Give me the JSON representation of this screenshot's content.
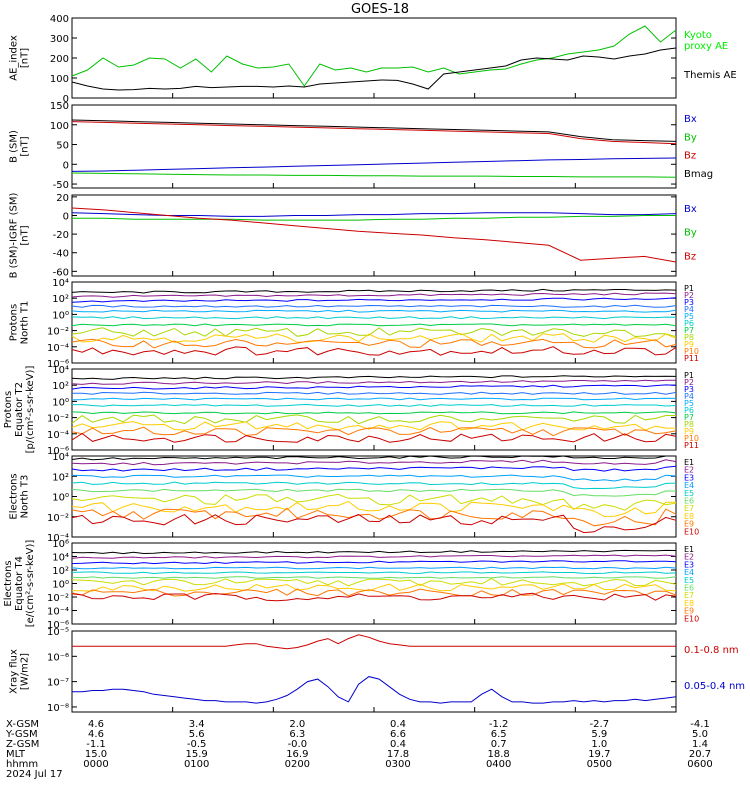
{
  "title": "GOES-18",
  "colors": {
    "axis": "#000000",
    "blue": "#0000cc",
    "green": "#00c000",
    "red": "#cc0000",
    "black": "#000000",
    "bright_green": "#00ee00",
    "proton_palette": [
      "#000000",
      "#8b1a8b",
      "#0000ff",
      "#1e6fff",
      "#00aaff",
      "#00cccc",
      "#00cc44",
      "#a8d800",
      "#ffcc00",
      "#ff7700",
      "#cc0000"
    ],
    "electron_palette": [
      "#000000",
      "#8b1a8b",
      "#0000ff",
      "#00a0ff",
      "#00cccc",
      "#66dd66",
      "#ccdd00",
      "#ffcc00",
      "#ff7700",
      "#cc0000"
    ]
  },
  "chart_data": [
    {
      "type": "line",
      "ylabel": "AE_index\n[nT]",
      "ylim": [
        0,
        400
      ],
      "yticks": [
        "0",
        "100",
        "200",
        "300",
        "400"
      ],
      "series": [
        {
          "name": "Kyoto\nproxy AE",
          "color": "green",
          "values": [
            110,
            140,
            200,
            155,
            165,
            200,
            195,
            150,
            195,
            130,
            210,
            170,
            150,
            155,
            170,
            60,
            170,
            140,
            150,
            130,
            150,
            150,
            155,
            130,
            150,
            120,
            130,
            140,
            145,
            170,
            190,
            200,
            220,
            230,
            240,
            260,
            320,
            360,
            280,
            340
          ]
        },
        {
          "name": "Themis AE",
          "color": "black",
          "values": [
            80,
            60,
            45,
            40,
            42,
            48,
            45,
            48,
            58,
            52,
            55,
            58,
            58,
            55,
            60,
            55,
            70,
            75,
            80,
            85,
            90,
            88,
            70,
            45,
            120,
            130,
            140,
            150,
            160,
            190,
            200,
            195,
            190,
            210,
            205,
            195,
            210,
            220,
            240,
            250
          ]
        }
      ]
    },
    {
      "type": "line",
      "ylabel": "B (SM)\n[nT]",
      "ylim": [
        -60,
        150
      ],
      "yticks": [
        "-50",
        "0",
        "50",
        "100",
        "150"
      ],
      "series": [
        {
          "name": "Bx",
          "color": "blue",
          "values": [
            -18,
            -17,
            -15,
            -13,
            -11,
            -9,
            -7,
            -5,
            -3,
            -1,
            1,
            3,
            5,
            7,
            9,
            11,
            12,
            14,
            15,
            16
          ]
        },
        {
          "name": "By",
          "color": "green",
          "values": [
            -22,
            -23,
            -24,
            -25,
            -26,
            -27,
            -27,
            -28,
            -28,
            -29,
            -29,
            -30,
            -30,
            -30,
            -31,
            -31,
            -32,
            -32,
            -32,
            -33
          ]
        },
        {
          "name": "Bz",
          "color": "red",
          "values": [
            108,
            106,
            104,
            102,
            100,
            98,
            96,
            94,
            92,
            90,
            88,
            86,
            84,
            82,
            80,
            78,
            65,
            58,
            55,
            52
          ]
        },
        {
          "name": "Bmag",
          "color": "black",
          "values": [
            112,
            110,
            108,
            106,
            104,
            102,
            100,
            98,
            96,
            94,
            92,
            90,
            88,
            86,
            84,
            82,
            70,
            62,
            60,
            58
          ]
        }
      ]
    },
    {
      "type": "line",
      "ylabel": "B (SM)-IGRF (SM)\n[nT]",
      "ylim": [
        -65,
        22
      ],
      "yticks": [
        "-60",
        "-40",
        "-20",
        "0",
        "20"
      ],
      "series": [
        {
          "name": "Bx",
          "color": "blue",
          "values": [
            3,
            2,
            1,
            0,
            0,
            -1,
            -1,
            0,
            0,
            1,
            1,
            2,
            2,
            3,
            3,
            3,
            2,
            1,
            1,
            2
          ]
        },
        {
          "name": "By",
          "color": "green",
          "values": [
            -3,
            -3,
            -4,
            -4,
            -4,
            -4,
            -5,
            -5,
            -5,
            -5,
            -4,
            -4,
            -3,
            -3,
            -2,
            -2,
            -1,
            -1,
            0,
            0
          ]
        },
        {
          "name": "Bz",
          "color": "red",
          "values": [
            8,
            6,
            3,
            0,
            -3,
            -5,
            -8,
            -11,
            -14,
            -17,
            -19,
            -21,
            -24,
            -26,
            -29,
            -32,
            -48,
            -46,
            -44,
            -50
          ]
        }
      ]
    },
    {
      "type": "line",
      "ylabel": "Protons\nNorth T1",
      "ylog": [
        -6,
        4
      ],
      "yticks": [
        "10⁻⁶",
        "10⁻⁴",
        "10⁻²",
        "10⁰",
        "10²",
        "10⁴"
      ],
      "series": [
        {
          "name": "P1",
          "log": 2.7
        },
        {
          "name": "P2",
          "log": 2.2
        },
        {
          "name": "P3",
          "log": 1.6
        },
        {
          "name": "P4",
          "log": 1.0
        },
        {
          "name": "P5",
          "log": 0.4
        },
        {
          "name": "P6",
          "log": -0.4
        },
        {
          "name": "P7",
          "log": -1.3
        },
        {
          "name": "P8",
          "log": -2.2
        },
        {
          "name": "P9",
          "log": -2.9
        },
        {
          "name": "P10",
          "log": -3.6
        },
        {
          "name": "P11",
          "log": -4.5
        }
      ]
    },
    {
      "type": "line",
      "ylabel": "Protons\nEquator T2\n[p/(cm²-s-sr-keV)]",
      "ylog": [
        -6,
        4
      ],
      "yticks": [
        "10⁻⁶",
        "10⁻⁴",
        "10⁻²",
        "10⁰",
        "10²",
        "10⁴"
      ],
      "series": [
        {
          "name": "P1",
          "log": 2.8
        },
        {
          "name": "P2",
          "log": 2.2
        },
        {
          "name": "P3",
          "log": 1.6
        },
        {
          "name": "P4",
          "log": 1.0
        },
        {
          "name": "P5",
          "log": 0.3
        },
        {
          "name": "P6",
          "log": -0.5
        },
        {
          "name": "P7",
          "log": -1.4
        },
        {
          "name": "P8",
          "log": -2.2
        },
        {
          "name": "P9",
          "log": -3.0
        },
        {
          "name": "P10",
          "log": -3.7
        },
        {
          "name": "P11",
          "log": -4.5
        }
      ]
    },
    {
      "type": "line",
      "ylabel": "Electrons\nNorth T3",
      "ylog": [
        -4,
        4
      ],
      "yticks": [
        "10⁻⁴",
        "10⁻²",
        "10⁰",
        "10²",
        "10⁴"
      ],
      "series": [
        {
          "name": "E1",
          "log": 3.7
        },
        {
          "name": "E2",
          "log": 3.2
        },
        {
          "name": "E3",
          "log": 2.6
        },
        {
          "name": "E4",
          "log": 2.0
        },
        {
          "name": "E5",
          "log": 1.3
        },
        {
          "name": "E6",
          "log": 0.6
        },
        {
          "name": "E7",
          "log": -0.3
        },
        {
          "name": "E8",
          "log": -1.0
        },
        {
          "name": "E9",
          "log": -1.7
        },
        {
          "name": "E10",
          "log": -2.3
        }
      ]
    },
    {
      "type": "line",
      "ylabel": "Electrons\nEquator T4\n[e/(cm²-s-sr-keV)]",
      "ylog": [
        -6,
        6
      ],
      "yticks": [
        "10⁻⁶",
        "10⁻⁴",
        "10⁻²",
        "10⁰",
        "10²",
        "10⁴",
        "10⁶"
      ],
      "series": [
        {
          "name": "E1",
          "log": 4.5
        },
        {
          "name": "E2",
          "log": 3.8
        },
        {
          "name": "E3",
          "log": 3.0
        },
        {
          "name": "E4",
          "log": 2.3
        },
        {
          "name": "E5",
          "log": 1.6
        },
        {
          "name": "E6",
          "log": 0.9
        },
        {
          "name": "E7",
          "log": 0.2
        },
        {
          "name": "E8",
          "log": -0.6
        },
        {
          "name": "E9",
          "log": -1.3
        },
        {
          "name": "E10",
          "log": -2.0
        }
      ]
    },
    {
      "type": "line",
      "ylabel": "Xray flux\n[W/m2]",
      "ylog": [
        -8.2,
        -5
      ],
      "yticks": [
        "10⁻⁸",
        "10⁻⁷",
        "10⁻⁶",
        "10⁻⁵"
      ],
      "series": [
        {
          "name": "0.1-0.8 nm",
          "color": "red",
          "values": [
            -5.6,
            -5.6,
            -5.6,
            -5.6,
            -5.6,
            -5.6,
            -5.6,
            -5.6,
            -5.6,
            -5.6,
            -5.6,
            -5.6,
            -5.6,
            -5.6,
            -5.6,
            -5.6,
            -5.55,
            -5.5,
            -5.5,
            -5.6,
            -5.65,
            -5.7,
            -5.65,
            -5.55,
            -5.4,
            -5.3,
            -5.5,
            -5.3,
            -5.15,
            -5.25,
            -5.4,
            -5.5,
            -5.55,
            -5.6,
            -5.6,
            -5.6,
            -5.6,
            -5.6,
            -5.6,
            -5.6,
            -5.6,
            -5.6,
            -5.6,
            -5.6,
            -5.6,
            -5.6,
            -5.6,
            -5.6,
            -5.6,
            -5.6,
            -5.6,
            -5.6,
            -5.6,
            -5.6,
            -5.6,
            -5.6,
            -5.6,
            -5.6,
            -5.6,
            -5.6
          ]
        },
        {
          "name": "0.05-0.4 nm",
          "color": "blue",
          "values": [
            -7.4,
            -7.4,
            -7.35,
            -7.35,
            -7.3,
            -7.3,
            -7.35,
            -7.4,
            -7.5,
            -7.55,
            -7.6,
            -7.65,
            -7.7,
            -7.75,
            -7.75,
            -7.8,
            -7.8,
            -7.8,
            -7.85,
            -7.8,
            -7.7,
            -7.55,
            -7.3,
            -7.0,
            -6.9,
            -7.2,
            -7.6,
            -7.8,
            -7.1,
            -6.8,
            -6.9,
            -7.2,
            -7.5,
            -7.7,
            -7.8,
            -7.8,
            -7.85,
            -7.8,
            -7.8,
            -7.8,
            -7.5,
            -7.3,
            -7.6,
            -7.8,
            -7.8,
            -7.85,
            -7.85,
            -7.8,
            -7.8,
            -7.75,
            -7.8,
            -7.75,
            -7.8,
            -7.75,
            -7.75,
            -7.7,
            -7.75,
            -7.7,
            -7.65,
            -7.6
          ]
        }
      ]
    }
  ],
  "footer": {
    "row_labels": [
      "X-GSM",
      "Y-GSM",
      "Z-GSM",
      "MLT",
      "hhmm",
      "2024 Jul 17"
    ],
    "columns": [
      [
        "4.6",
        "4.6",
        "-1.1",
        "15.0",
        "0000"
      ],
      [
        "3.4",
        "5.6",
        "-0.5",
        "15.9",
        "0100"
      ],
      [
        "2.0",
        "6.3",
        "-0.0",
        "16.9",
        "0200"
      ],
      [
        "0.4",
        "6.6",
        "0.4",
        "17.8",
        "0300"
      ],
      [
        "-1.2",
        "6.5",
        "0.7",
        "18.8",
        "0400"
      ],
      [
        "-2.7",
        "5.9",
        "1.0",
        "19.7",
        "0500"
      ],
      [
        "-4.1",
        "5.0",
        "1.4",
        "20.7",
        "0600"
      ]
    ]
  }
}
